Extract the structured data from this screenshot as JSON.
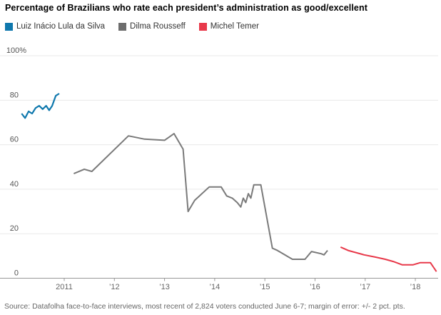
{
  "header": {
    "title": "Percentage of Brazilians who rate each president’s administration as good/excellent"
  },
  "legend": {
    "items": [
      {
        "label": "Luiz Inácio Lula da Silva",
        "color": "#0f78ad"
      },
      {
        "label": "Dilma Rousseff",
        "color": "#6d6d6d"
      },
      {
        "label": "Michel Temer",
        "color": "#e8394a"
      }
    ]
  },
  "chart_data": {
    "type": "line",
    "title": "Percentage of Brazilians who rate each president’s administration as good/excellent",
    "xlabel": "",
    "ylabel": "",
    "x_unit": "decimal year",
    "xlim": [
      2010.0,
      2018.6
    ],
    "ylim": [
      0,
      100
    ],
    "grid": "horizontal",
    "legend_position": "top-left",
    "y_axis": {
      "tick_values": [
        0,
        20,
        40,
        60,
        80,
        100
      ],
      "tick_labels": [
        "0",
        "20",
        "40",
        "60",
        "80",
        "100%"
      ]
    },
    "x_axis": {
      "ticks": [
        {
          "label": "2011",
          "year": 2011
        },
        {
          "label": "’12",
          "year": 2012
        },
        {
          "label": "’13",
          "year": 2013
        },
        {
          "label": "’14",
          "year": 2014
        },
        {
          "label": "’15",
          "year": 2015
        },
        {
          "label": "’16",
          "year": 2016
        },
        {
          "label": "’17",
          "year": 2017
        },
        {
          "label": "’18",
          "year": 2018
        }
      ]
    },
    "series": [
      {
        "name": "Luiz Inácio Lula da Silva",
        "color": "#0f78ad",
        "stroke_width": 2.2,
        "x": [
          2010.15,
          2010.22,
          2010.29,
          2010.36,
          2010.43,
          2010.5,
          2010.57,
          2010.64,
          2010.7,
          2010.76,
          2010.83,
          2010.9
        ],
        "y": [
          74,
          72,
          75,
          74,
          76.5,
          77.5,
          76,
          77.5,
          75.5,
          77.5,
          82,
          83
        ]
      },
      {
        "name": "Dilma Rousseff",
        "color": "#7a7a7a",
        "stroke_width": 2,
        "x": [
          2011.19,
          2011.4,
          2011.55,
          2012.28,
          2012.6,
          2013.0,
          2013.19,
          2013.37,
          2013.47,
          2013.6,
          2013.89,
          2014.13,
          2014.24,
          2014.35,
          2014.45,
          2014.52,
          2014.57,
          2014.62,
          2014.67,
          2014.72,
          2014.78,
          2014.92,
          2015.15,
          2015.25,
          2015.55,
          2015.8,
          2015.93,
          2016.12,
          2016.18,
          2016.25
        ],
        "y": [
          47,
          49,
          48,
          64,
          62.5,
          62,
          65,
          58,
          30,
          35,
          41,
          41,
          37,
          36,
          34,
          32,
          36,
          34,
          38,
          36,
          42,
          42,
          13.5,
          12.5,
          8.5,
          8.5,
          12,
          11,
          10.5,
          12.5
        ]
      },
      {
        "name": "Michel Temer",
        "color": "#e8394a",
        "stroke_width": 2,
        "x": [
          2016.51,
          2016.66,
          2016.98,
          2017.2,
          2017.4,
          2017.56,
          2017.74,
          2017.95,
          2018.1,
          2018.3,
          2018.42
        ],
        "y": [
          14,
          12.5,
          10.5,
          9.5,
          8.5,
          7.5,
          6,
          6,
          7,
          7,
          3
        ]
      }
    ]
  },
  "footer": {
    "source": "Source: Datafolha face-to-face interviews, most recent of 2,824 voters conducted June 6-7; margin of error: +/- 2 pct. pts."
  }
}
